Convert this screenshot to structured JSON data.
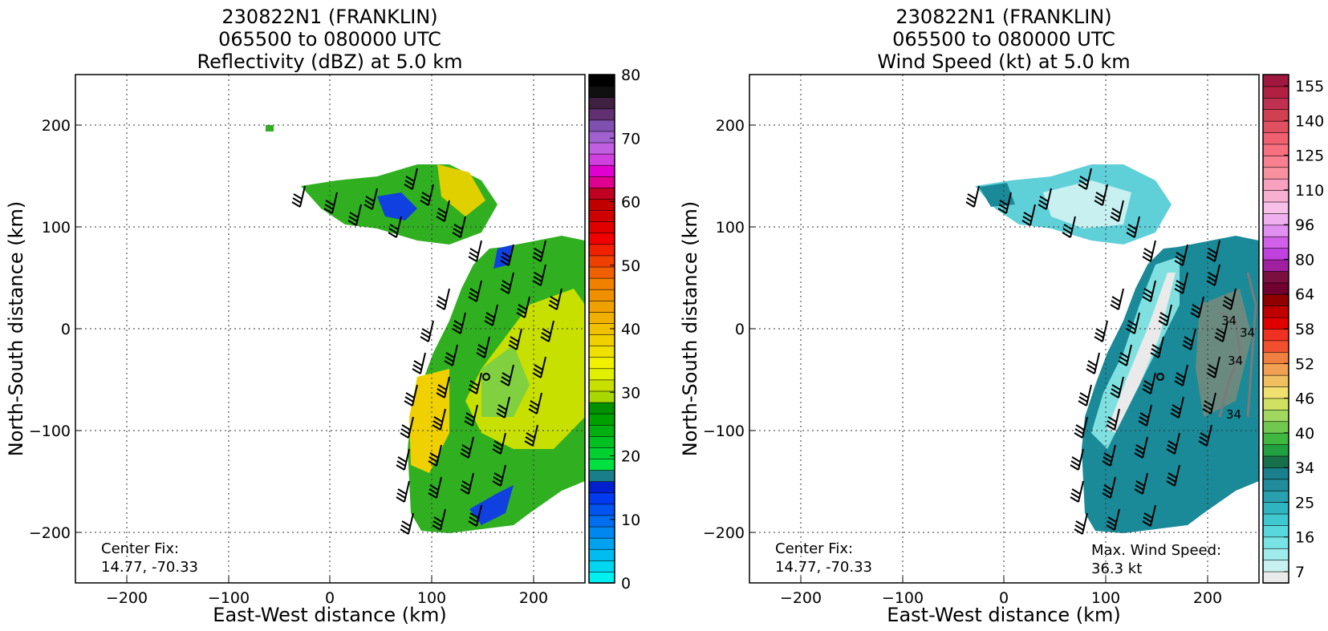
{
  "figure": {
    "panels": [
      {
        "title_lines": [
          "230822N1 (FRANKLIN)",
          "065500 to 080000 UTC",
          "Reflectivity (dBZ) at 5.0 km"
        ],
        "xlabel": "East-West distance (km)",
        "ylabel": "North-South distance (km)",
        "center_fix_label": "Center Fix:",
        "center_fix_value": "14.77, -70.33",
        "colorbar": {
          "min": 0,
          "max": 80,
          "tick_labels": [
            "0",
            "10",
            "20",
            "30",
            "40",
            "50",
            "60",
            "70",
            "80"
          ],
          "colors": [
            "#00f0f0",
            "#00d6f0",
            "#00bcf0",
            "#00a2f0",
            "#0088f0",
            "#006ef0",
            "#0054f0",
            "#003af0",
            "#0020d0",
            "#1a7e8a",
            "#00e040",
            "#00d030",
            "#00c020",
            "#00b010",
            "#00a000",
            "#009000",
            "#a8d800",
            "#c8e000",
            "#e0f000",
            "#f0f000",
            "#f0e000",
            "#f0d000",
            "#f0c000",
            "#f0b000",
            "#f0a000",
            "#f09000",
            "#f08000",
            "#f06000",
            "#f04000",
            "#f02000",
            "#f00000",
            "#e00000",
            "#d00000",
            "#c00000",
            "#c00020",
            "#e00090",
            "#e000d0",
            "#d040e0",
            "#c060e0",
            "#a060d0",
            "#8050b0",
            "#603070",
            "#402040",
            "#101010",
            "#000000"
          ]
        },
        "contour_labels": []
      },
      {
        "title_lines": [
          "230822N1 (FRANKLIN)",
          "065500 to 080000 UTC",
          "Wind Speed (kt) at 5.0 km"
        ],
        "xlabel": "East-West distance (km)",
        "ylabel": "North-South distance (km)",
        "center_fix_label": "Center Fix:",
        "center_fix_value": "14.77, -70.33",
        "max_wind_label": "Max. Wind Speed:",
        "max_wind_value": "36.3 kt",
        "colorbar": {
          "min": 0,
          "max": 160,
          "tick_labels": [
            "7",
            "16",
            "25",
            "34",
            "40",
            "46",
            "52",
            "58",
            "64",
            "80",
            "96",
            "110",
            "125",
            "140",
            "155"
          ],
          "colors": [
            "#eaeaea",
            "#c8f0f0",
            "#a0ecec",
            "#78e4e4",
            "#58d8dc",
            "#40c8d0",
            "#30b4c0",
            "#28a0b0",
            "#208c9c",
            "#1a808c",
            "#18704a",
            "#20a040",
            "#40b840",
            "#70c850",
            "#a0d860",
            "#d0e060",
            "#f0e070",
            "#f0c060",
            "#f0a050",
            "#f08040",
            "#f05030",
            "#f03020",
            "#e00000",
            "#c00000",
            "#900000",
            "#700030",
            "#7a1040",
            "#a020a0",
            "#c040e0",
            "#d060e8",
            "#e090f0",
            "#f0b0f0",
            "#f8c0e8",
            "#f8b0d0",
            "#f8a0c0",
            "#f890a0",
            "#f88090",
            "#f87080",
            "#f06070",
            "#e05060",
            "#d04050",
            "#c03050",
            "#b02040",
            "#a01840"
          ]
        },
        "contour_labels": [
          "34",
          "34",
          "34",
          "34"
        ]
      }
    ],
    "shared_axes": {
      "x_tick_labels": [
        "−200",
        "−100",
        "0",
        "100",
        "200"
      ],
      "y_tick_labels": [
        "200",
        "100",
        "0",
        "−100",
        "−200"
      ]
    }
  },
  "chart_data": [
    {
      "type": "heatmap",
      "title": "230822N1 (FRANKLIN) 065500 to 080000 UTC Reflectivity (dBZ) at 5.0 km",
      "xlabel": "East-West distance (km)",
      "ylabel": "North-South distance (km)",
      "xlim": [
        -250,
        250
      ],
      "ylim": [
        -250,
        250
      ],
      "grid": true,
      "colorbar_range": [
        0,
        80
      ],
      "colorbar_unit": "dBZ",
      "center_fix": [
        14.77,
        -70.33
      ],
      "storm_center_km": [
        153,
        -47
      ],
      "data_extent": {
        "northern_band": {
          "x": [
            -25,
            165
          ],
          "y": [
            85,
            160
          ]
        },
        "main_area": {
          "x": [
            80,
            250
          ],
          "y": [
            -200,
            100
          ]
        }
      }
    },
    {
      "type": "heatmap",
      "title": "230822N1 (FRANKLIN) 065500 to 080000 UTC Wind Speed (kt) at 5.0 km",
      "xlabel": "East-West distance (km)",
      "ylabel": "North-South distance (km)",
      "xlim": [
        -250,
        250
      ],
      "ylim": [
        -250,
        250
      ],
      "grid": true,
      "colorbar_range": [
        0,
        160
      ],
      "colorbar_unit": "kt",
      "center_fix": [
        14.77,
        -70.33
      ],
      "max_wind_speed_kt": 36.3,
      "storm_center_km": [
        153,
        -47
      ],
      "contour_level_kt": 34
    }
  ]
}
